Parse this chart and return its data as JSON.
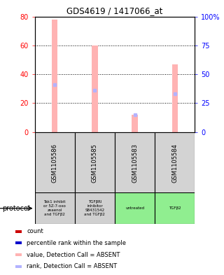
{
  "title": "GDS4619 / 1417066_at",
  "samples": [
    "GSM1105586",
    "GSM1105585",
    "GSM1105583",
    "GSM1105584"
  ],
  "bar_values_absent": [
    78,
    60,
    12,
    47
  ],
  "rank_values_absent": [
    41,
    36,
    15,
    33
  ],
  "bar_color_absent": "#ffb3b3",
  "rank_color_absent": "#b3b3ff",
  "ylim_left": [
    0,
    80
  ],
  "ylim_right": [
    0,
    100
  ],
  "yticks_left": [
    0,
    20,
    40,
    60,
    80
  ],
  "yticks_right": [
    0,
    25,
    50,
    75,
    100
  ],
  "ytick_labels_right": [
    "0",
    "25",
    "50",
    "75",
    "100%"
  ],
  "protocol_labels": [
    "Tak1 inhibit\nor 5Z-7-oxo\nzeaenol\nand TGFβ2",
    "TGFβRI\ninhibitor\nSB431542\nand TGFβ2",
    "untreated",
    "TGFβ2"
  ],
  "protocol_colors": [
    "#d0d0d0",
    "#d0d0d0",
    "#90ee90",
    "#90ee90"
  ],
  "legend_items": [
    {
      "color": "#cc0000",
      "label": "count"
    },
    {
      "color": "#0000cc",
      "label": "percentile rank within the sample"
    },
    {
      "color": "#ffb3b3",
      "label": "value, Detection Call = ABSENT"
    },
    {
      "color": "#b3b3ff",
      "label": "rank, Detection Call = ABSENT"
    }
  ],
  "bar_width": 0.15,
  "background_color": "#ffffff",
  "sample_box_color": "#d3d3d3"
}
